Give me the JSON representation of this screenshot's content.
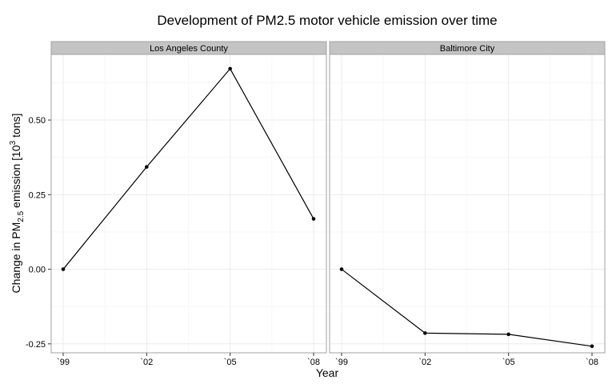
{
  "chart_data": {
    "type": "line",
    "title": "Development of PM2.5 motor vehicle emission over time",
    "xlabel": "Year",
    "ylabel": {
      "prefix": "Change in PM",
      "sub": "2.5",
      "middle": " emission [10",
      "sup": "3",
      "suffix": " tons]"
    },
    "ylim": [
      -0.28,
      0.72
    ],
    "y_ticks": [
      -0.25,
      0.0,
      0.25,
      0.5
    ],
    "y_tick_labels": [
      "-0.25",
      "0.00",
      "0.25",
      "0.50"
    ],
    "categories": [
      "`99",
      "`02",
      "`05",
      "`08"
    ],
    "grid": true,
    "panels": [
      {
        "name": "Los Angeles County",
        "values": [
          0.0,
          0.343,
          0.672,
          0.169
        ]
      },
      {
        "name": "Baltimore City",
        "values": [
          0.0,
          -0.214,
          -0.218,
          -0.258
        ]
      }
    ],
    "colors": {
      "line": "#000000",
      "strip": "#c4c4c4",
      "panel_border": "#a0a0a0",
      "grid_major": "#ebebeb",
      "grid_minor": "#f6f6f6"
    }
  }
}
